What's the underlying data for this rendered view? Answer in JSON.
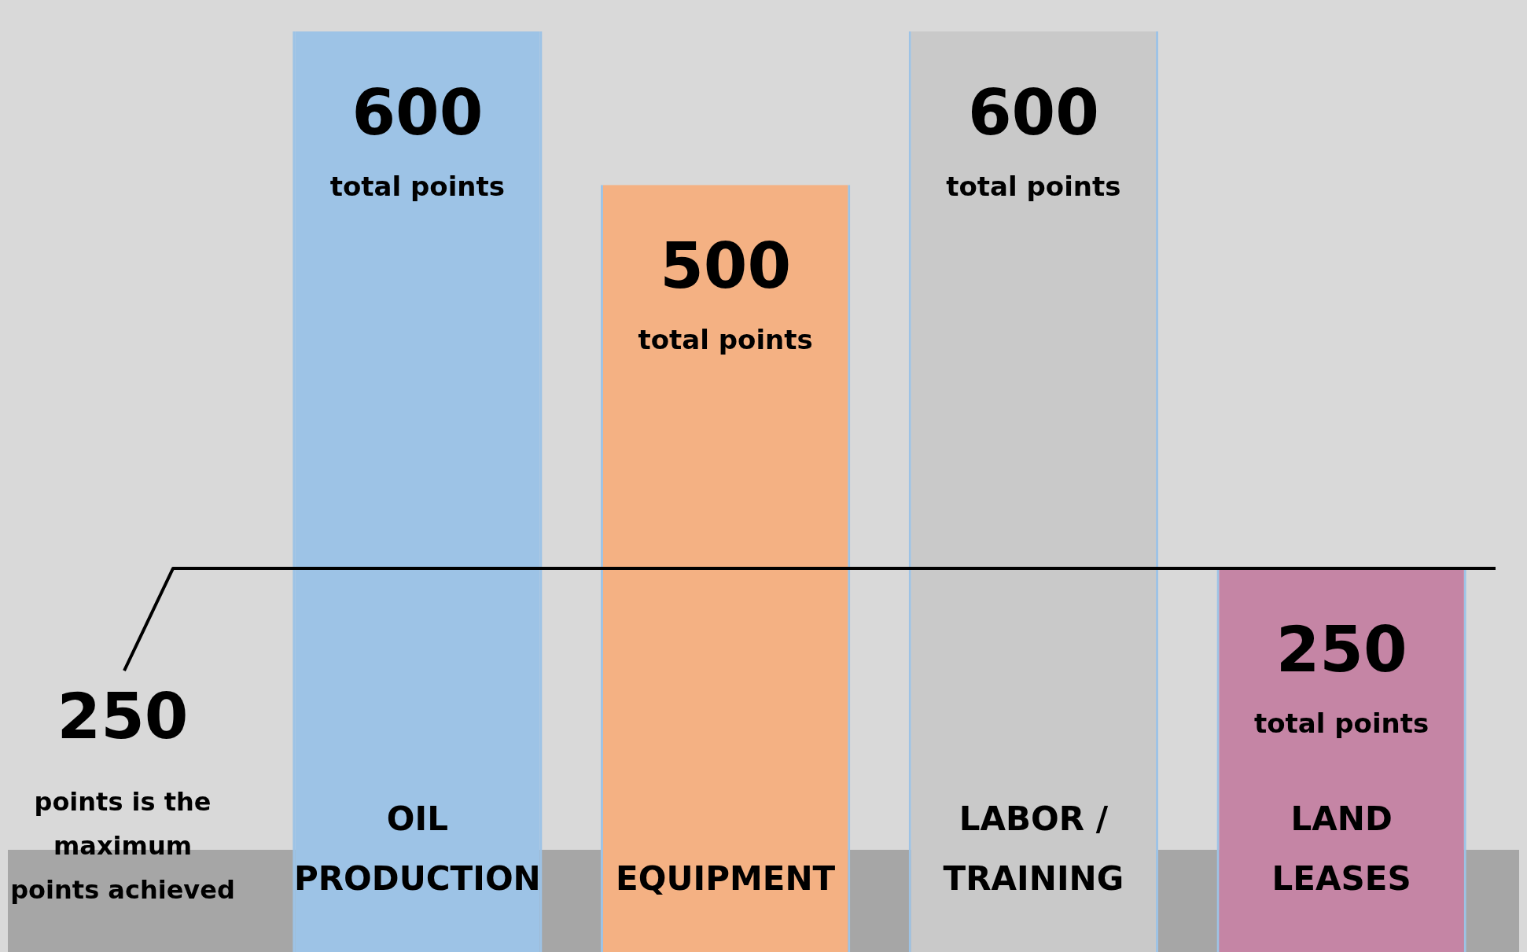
{
  "chart_data": {
    "type": "bar",
    "categories": [
      "OIL PRODUCTION",
      "EQUIPMENT",
      "LABOR / TRAINING",
      "LAND LEASES"
    ],
    "values": [
      600,
      500,
      600,
      250
    ],
    "colors": [
      "#9dc3e6",
      "#f4b183",
      "#c9c9c9",
      "#c585a5"
    ],
    "value_labels": [
      "600 total points",
      "500 total points",
      "600 total points",
      "250 total points"
    ],
    "ref_lines": [
      {
        "axis": "y",
        "value": 250,
        "label": "250 points is the maximum points achieved",
        "color": "#000000"
      }
    ],
    "legend": false
  }
}
